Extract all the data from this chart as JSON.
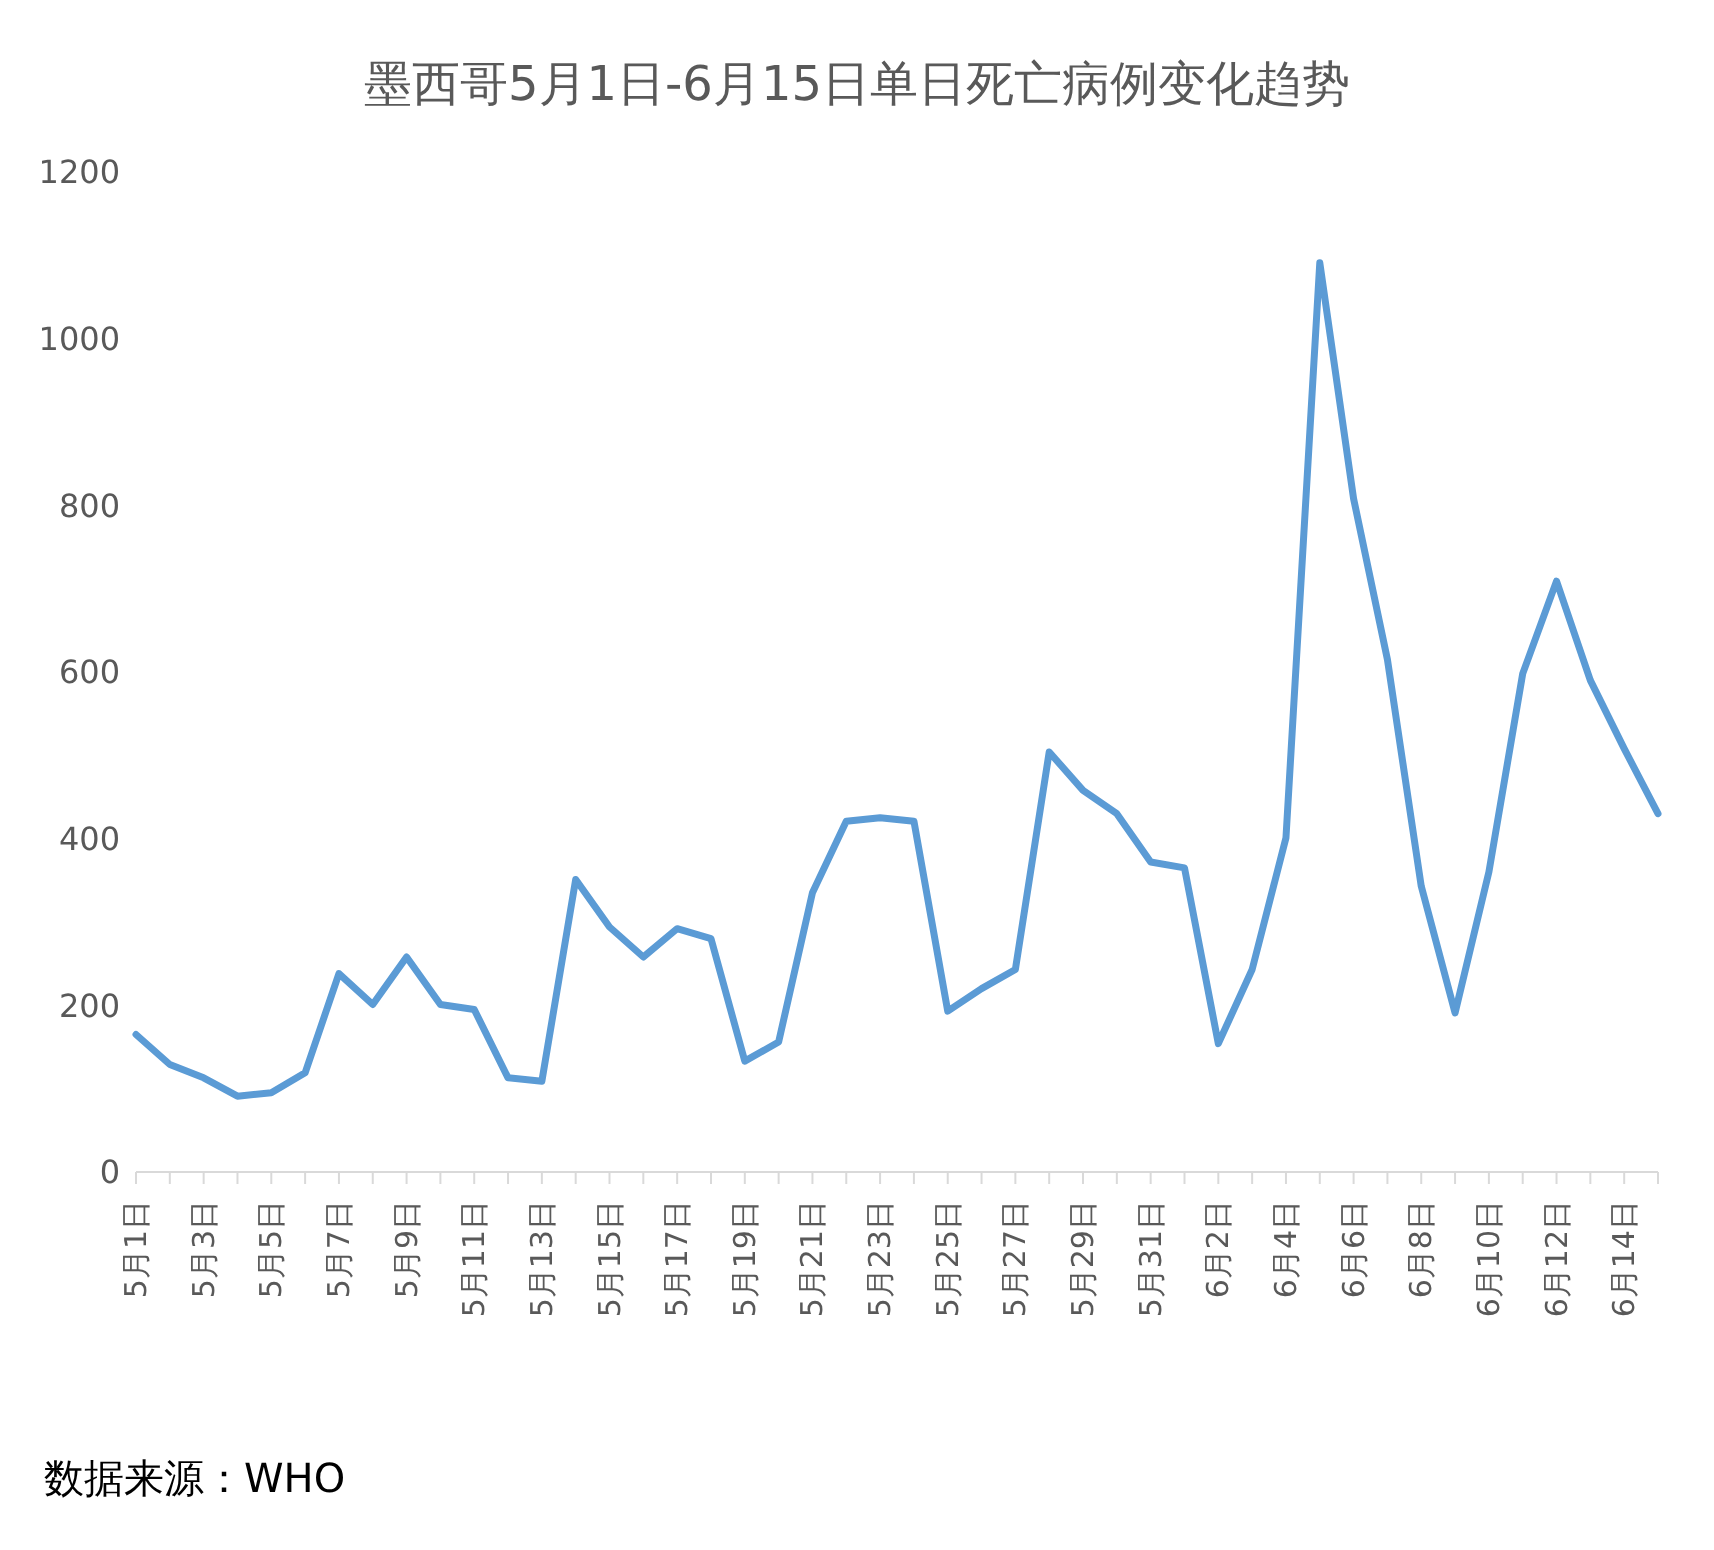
{
  "chart_data": {
    "type": "line",
    "title": "墨西哥5月1日-6月15日单日死亡病例变化趋势",
    "categories": [
      "5月1日",
      null,
      "5月3日",
      null,
      "5月5日",
      null,
      "5月7日",
      null,
      "5月9日",
      null,
      "5月11日",
      null,
      "5月13日",
      null,
      "5月15日",
      null,
      "5月17日",
      null,
      "5月19日",
      null,
      "5月21日",
      null,
      "5月23日",
      null,
      "5月25日",
      null,
      "5月27日",
      null,
      "5月29日",
      null,
      "5月31日",
      null,
      "6月2日",
      null,
      "6月4日",
      null,
      "6月6日",
      null,
      "6月8日",
      null,
      "6月10日",
      null,
      "6月12日",
      null,
      "6月14日",
      null
    ],
    "series": [
      {
        "color": "#5b9bd5",
        "values": [
          165,
          129,
          113,
          91,
          95,
          119,
          238,
          201,
          258,
          201,
          195,
          113,
          109,
          351,
          294,
          258,
          292,
          280,
          133,
          156,
          335,
          421,
          425,
          421,
          193,
          220,
          243,
          504,
          458,
          430,
          372,
          365,
          154,
          243,
          401,
          1091,
          808,
          615,
          343,
          191,
          360,
          598,
          709,
          590,
          508,
          430
        ]
      }
    ],
    "ylim": [
      0,
      1200
    ],
    "yticks": [
      0,
      200,
      400,
      600,
      800,
      1000,
      1200
    ],
    "grid": false,
    "legend": false,
    "marker": "none",
    "line_style": "solid",
    "annotations": [
      "数据来源：WHO"
    ]
  }
}
